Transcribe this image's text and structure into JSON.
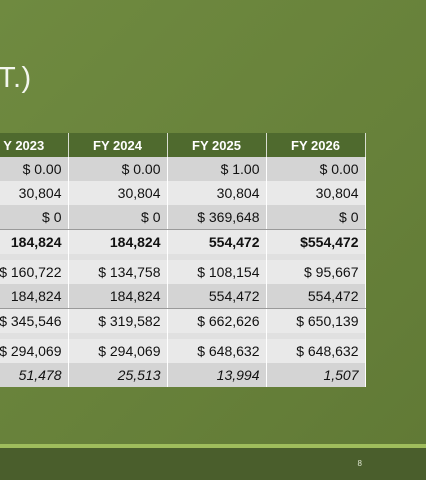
{
  "slide": {
    "title_fragment": "T.)",
    "page_number": "8"
  },
  "table": {
    "headers": [
      "Y 2023",
      "FY 2024",
      "FY 2025",
      "FY 2026"
    ],
    "rows": [
      {
        "cells": [
          "$ 0.00",
          "$ 0.00",
          "$ 1.00",
          "$ 0.00"
        ]
      },
      {
        "cells": [
          "30,804",
          "30,804",
          "30,804",
          "30,804"
        ]
      },
      {
        "cells": [
          "$ 0",
          "$ 0",
          "$ 369,648",
          "$ 0"
        ]
      },
      {
        "cells": [
          "184,824",
          "184,824",
          "554,472",
          "$554,472"
        ]
      },
      {
        "cells": [
          "",
          "",
          "",
          ""
        ]
      },
      {
        "cells": [
          "$ 160,722",
          "$ 134,758",
          "$ 108,154",
          "$ 95,667"
        ]
      },
      {
        "cells": [
          "184,824",
          "184,824",
          "554,472",
          "554,472"
        ]
      },
      {
        "cells": [
          "$ 345,546",
          "$ 319,582",
          "$ 662,626",
          "$ 650,139"
        ]
      },
      {
        "cells": [
          "",
          "",
          "",
          ""
        ]
      },
      {
        "cells": [
          "$ 294,069",
          "$ 294,069",
          "$ 648,632",
          "$ 648,632"
        ]
      },
      {
        "cells": [
          "51,478",
          "25,513",
          "13,994",
          "1,507"
        ]
      }
    ]
  }
}
